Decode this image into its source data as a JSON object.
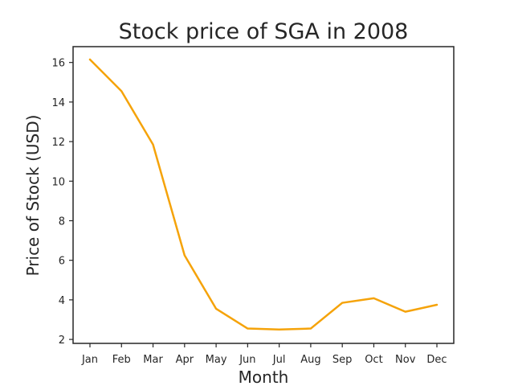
{
  "chart_data": {
    "type": "line",
    "title": "Stock price of SGA in 2008",
    "xlabel": "Month",
    "ylabel": "Price of Stock (USD)",
    "categories": [
      "Jan",
      "Feb",
      "Mar",
      "Apr",
      "May",
      "Jun",
      "Jul",
      "Aug",
      "Sep",
      "Oct",
      "Nov",
      "Dec"
    ],
    "series": [
      {
        "values": [
          16.15,
          14.55,
          11.85,
          6.25,
          3.55,
          2.55,
          2.5,
          2.55,
          3.85,
          4.08,
          3.4,
          3.75
        ],
        "color": "#f5a30a"
      }
    ],
    "yticks": [
      2,
      4,
      6,
      8,
      10,
      12,
      14,
      16
    ],
    "ylim": [
      1.8,
      16.8
    ],
    "grid": false,
    "legend": false
  }
}
